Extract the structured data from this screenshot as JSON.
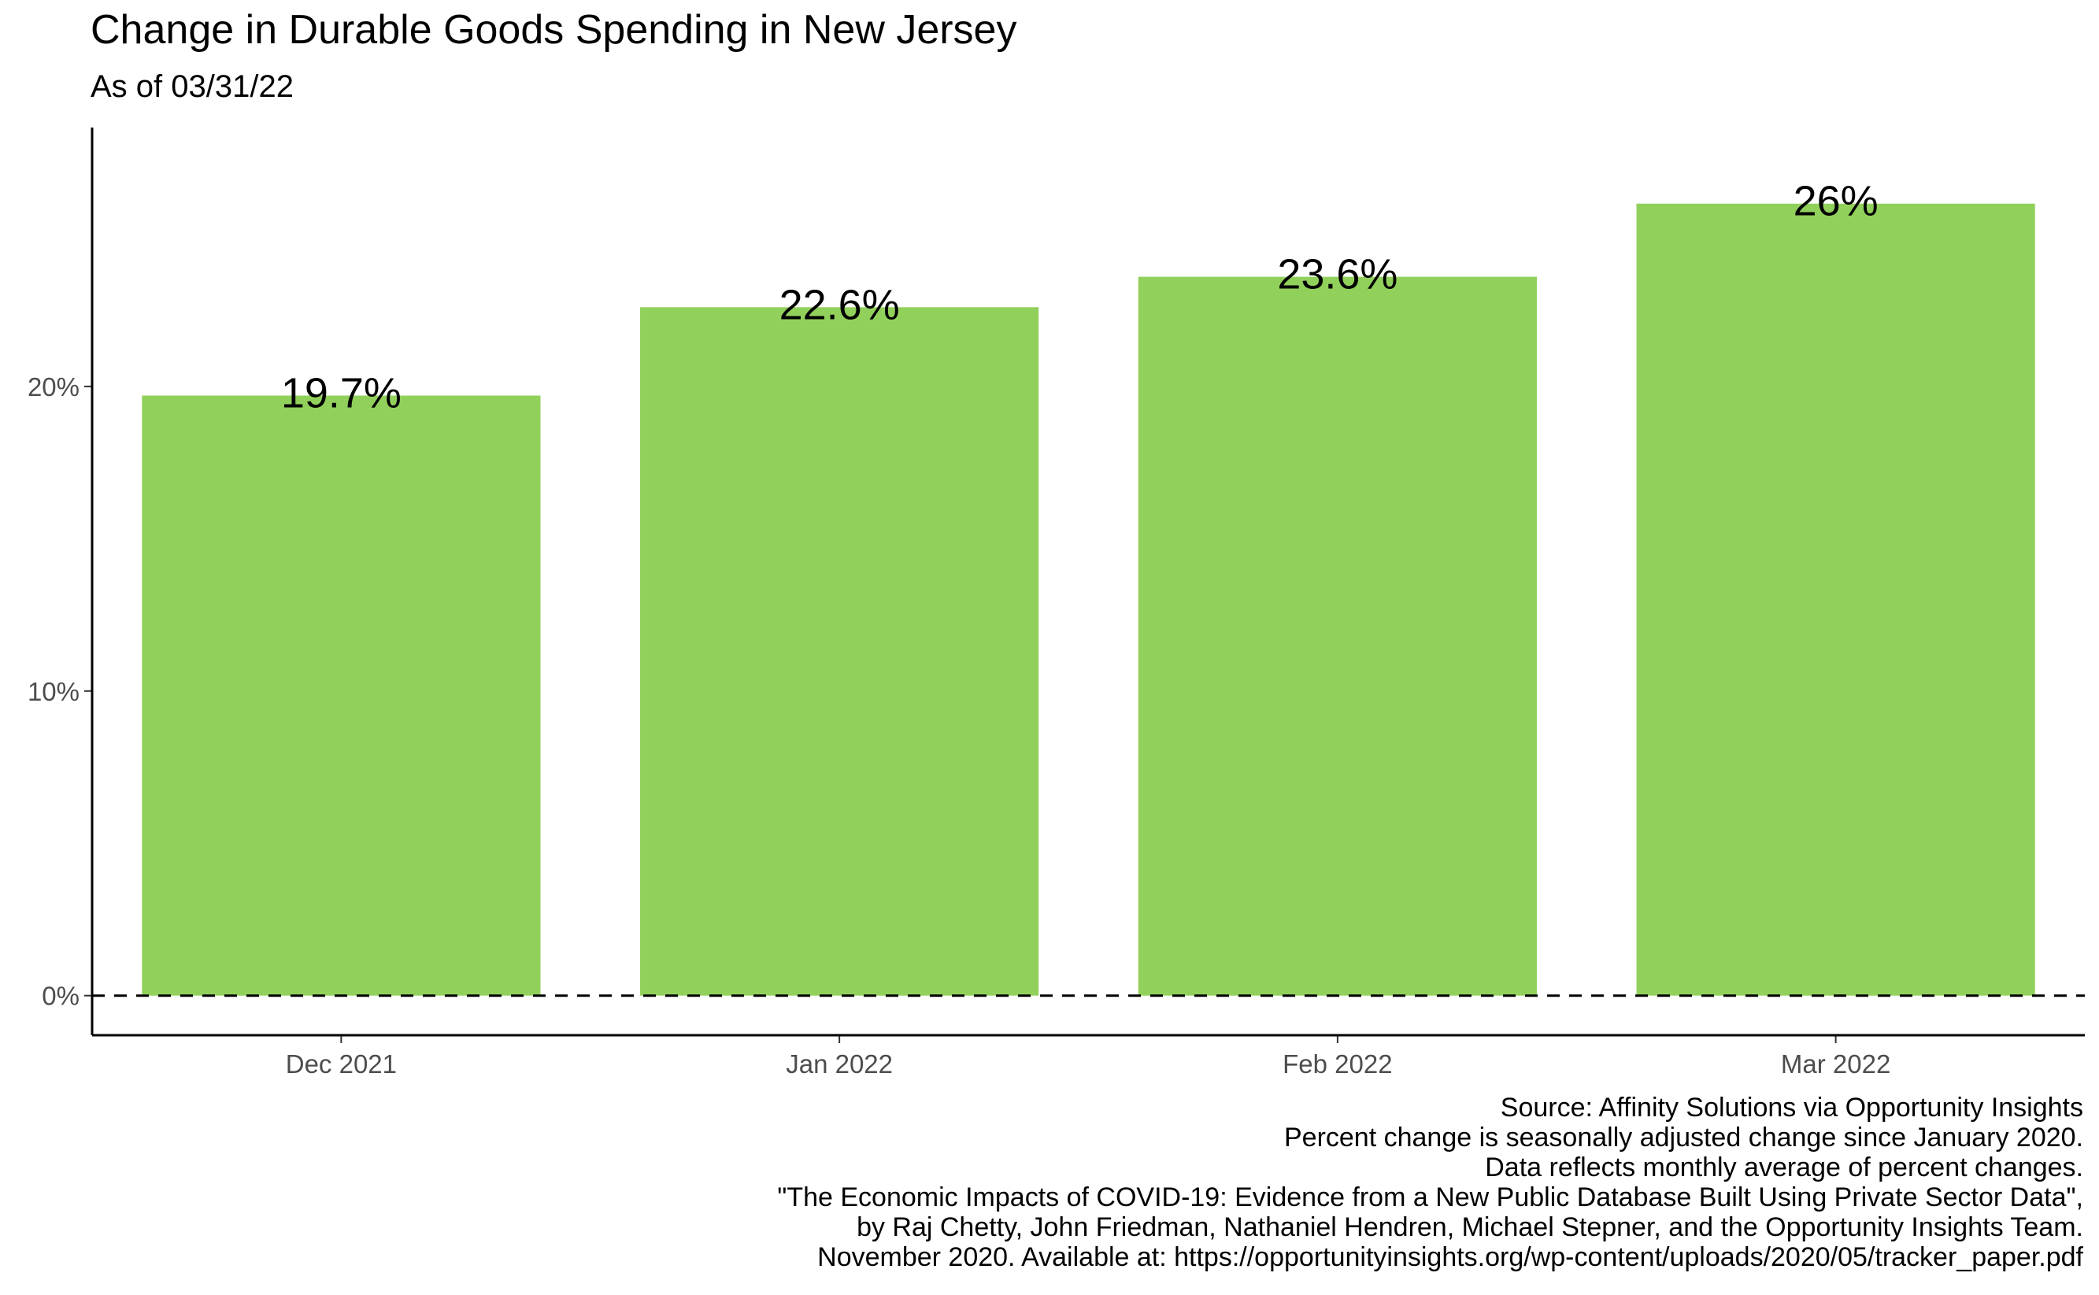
{
  "chart_data": {
    "type": "bar",
    "title": "Change in Durable Goods Spending in New Jersey",
    "subtitle": "As of 03/31/22",
    "categories": [
      "Dec 2021",
      "Jan 2022",
      "Feb 2022",
      "Mar 2022"
    ],
    "values": [
      19.7,
      22.6,
      23.6,
      26.0
    ],
    "data_labels": [
      "19.7%",
      "22.6%",
      "23.6%",
      "26%"
    ],
    "y_ticks": [
      0,
      10,
      20
    ],
    "y_tick_labels": [
      "0%",
      "10%",
      "20%"
    ],
    "ylim": [
      -1.3,
      28.5
    ],
    "xlabel": "",
    "ylabel": "",
    "bar_color": "#92d05c",
    "reference_line": {
      "y": 0,
      "style": "dashed"
    },
    "grid": false,
    "legend": "none"
  },
  "caption": [
    "Source: Affinity Solutions via Opportunity Insights",
    "Percent change is seasonally adjusted change since January 2020.",
    "Data reflects monthly average of percent changes.",
    "\"The Economic Impacts of COVID-19: Evidence from a New Public Database Built Using Private Sector Data\",",
    "by Raj Chetty, John Friedman, Nathaniel Hendren, Michael Stepner, and the Opportunity Insights Team.",
    "November 2020. Available at: https://opportunityinsights.org/wp-content/uploads/2020/05/tracker_paper.pdf"
  ]
}
